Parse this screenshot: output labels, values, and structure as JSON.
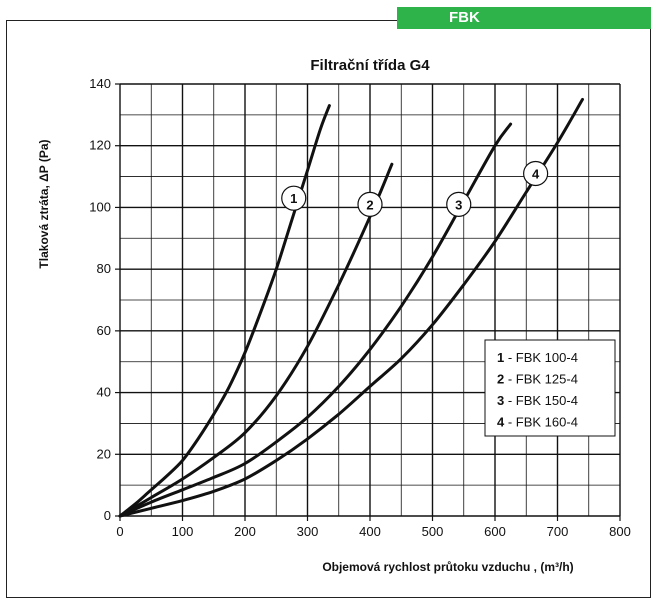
{
  "header": {
    "tag": "FBK"
  },
  "chart_data": {
    "type": "line",
    "title": "Filtrační třída G4",
    "xlabel": "Objemová rychlost průtoku vzduchu , (m³/h)",
    "ylabel": "Tlaková ztráta, ΔP (Pa)",
    "xlim": [
      0,
      800
    ],
    "ylim": [
      0,
      140
    ],
    "xticks": [
      0,
      100,
      200,
      300,
      400,
      500,
      600,
      700,
      800
    ],
    "yticks": [
      0,
      20,
      40,
      60,
      80,
      100,
      120,
      140
    ],
    "x_minor_step": 50,
    "y_minor_step": 10,
    "grid": true,
    "legend_position": "right",
    "series": [
      {
        "name": "FBK 100-4",
        "label": "1",
        "x": [
          0,
          25,
          50,
          75,
          100,
          125,
          150,
          175,
          200,
          225,
          250,
          275,
          300,
          320,
          335
        ],
        "y": [
          0,
          4,
          8.5,
          13,
          18,
          25,
          33,
          42,
          53,
          66,
          80,
          96,
          112,
          125,
          133
        ]
      },
      {
        "name": "FBK 125-4",
        "label": "2",
        "x": [
          0,
          50,
          100,
          150,
          200,
          250,
          300,
          350,
          400,
          435
        ],
        "y": [
          0,
          6,
          12,
          19,
          27,
          39,
          55,
          75,
          97,
          114
        ]
      },
      {
        "name": "FBK 150-4",
        "label": "3",
        "x": [
          0,
          50,
          100,
          150,
          200,
          250,
          300,
          350,
          400,
          450,
          500,
          550,
          600,
          625
        ],
        "y": [
          0,
          4.5,
          8.5,
          12.5,
          17,
          24,
          32,
          42,
          54,
          68,
          84,
          102,
          120,
          127
        ]
      },
      {
        "name": "FBK 160-4",
        "label": "4",
        "x": [
          0,
          50,
          100,
          150,
          200,
          250,
          300,
          350,
          400,
          450,
          500,
          550,
          600,
          650,
          700,
          740
        ],
        "y": [
          0,
          2.5,
          5,
          8,
          12,
          18,
          25,
          33,
          42,
          51,
          62,
          75,
          89,
          105,
          121,
          135
        ]
      }
    ],
    "legend": [
      {
        "num": "1",
        "text": "FBK 100-4"
      },
      {
        "num": "2",
        "text": "FBK 125-4"
      },
      {
        "num": "3",
        "text": "FBK 150-4"
      },
      {
        "num": "4",
        "text": "FBK 160-4"
      }
    ],
    "curve_labels": [
      {
        "label": "1",
        "x": 278,
        "y": 103
      },
      {
        "label": "2",
        "x": 400,
        "y": 101
      },
      {
        "label": "3",
        "x": 542,
        "y": 101
      },
      {
        "label": "4",
        "x": 665,
        "y": 111
      }
    ],
    "tick_label_sep": "-"
  }
}
